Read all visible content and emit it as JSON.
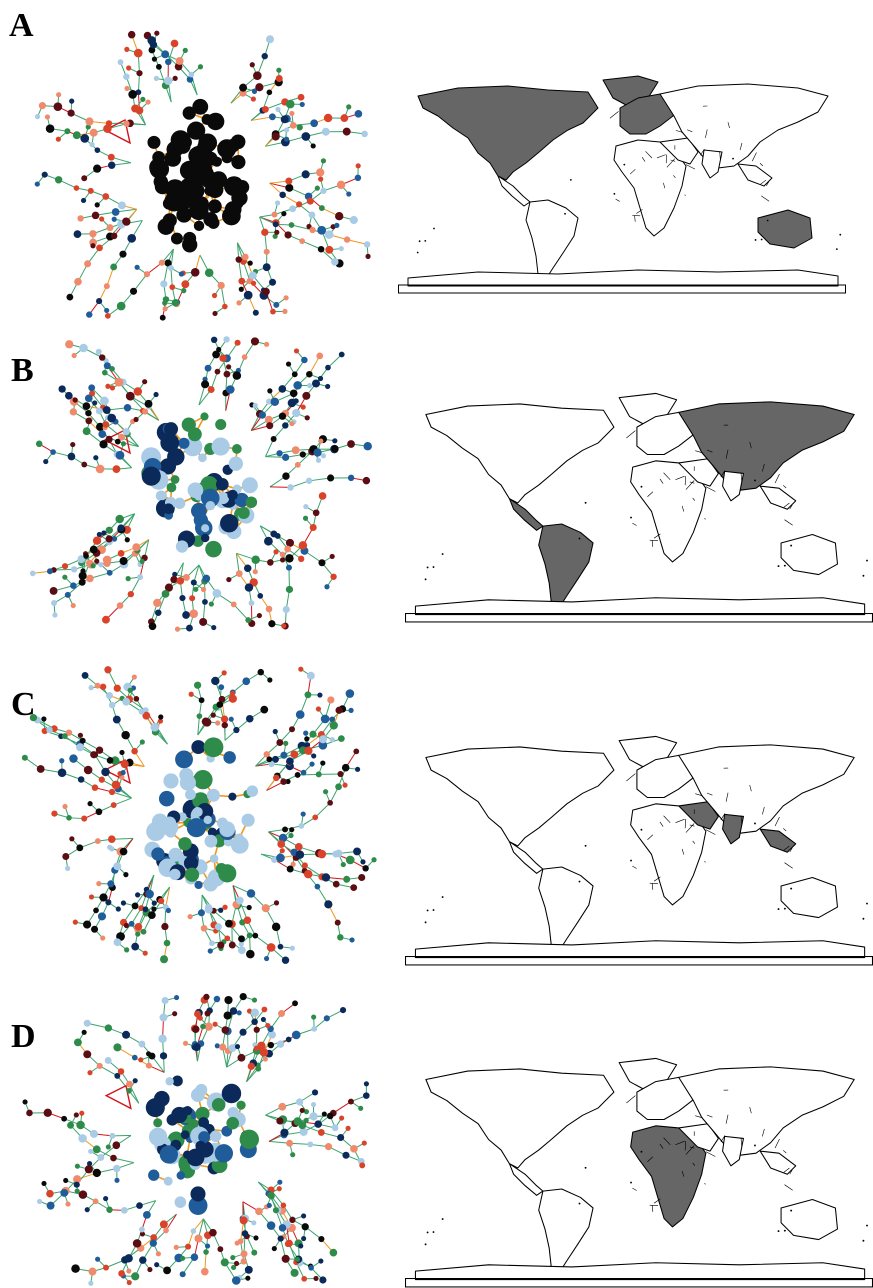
{
  "figure": {
    "panels": [
      {
        "label": "A"
      },
      {
        "label": "B"
      },
      {
        "label": "C"
      },
      {
        "label": "D"
      }
    ]
  },
  "colors": {
    "node_black": "#0a0a0a",
    "node_navy": "#0b2a5a",
    "node_blue": "#1f5c99",
    "node_lightblue": "#a9cbe6",
    "node_green": "#2e8b4a",
    "node_red": "#d9432a",
    "node_salmon": "#f08a6c",
    "node_darkred": "#5a0d12",
    "edge_orange": "#f0961e",
    "edge_green": "#3aa36c",
    "edge_red": "#d4141a",
    "map_fill": "#666666",
    "map_outline": "#000000"
  }
}
